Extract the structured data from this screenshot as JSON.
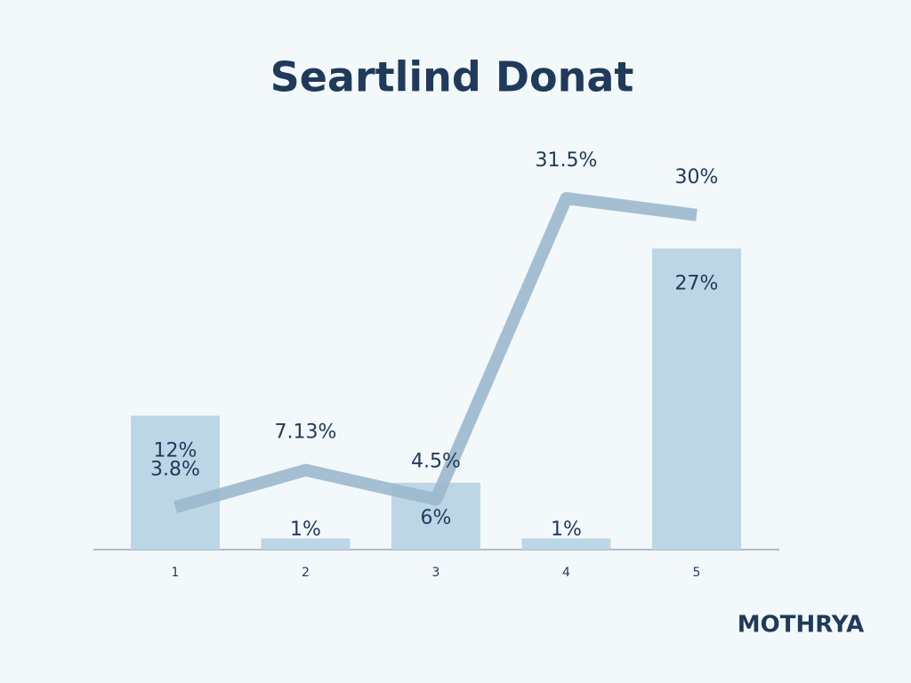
{
  "chart_data": {
    "type": "combo",
    "title": "Seartlind Donat",
    "categories": [
      "1",
      "2",
      "3",
      "4",
      "5"
    ],
    "series": [
      {
        "type": "bar",
        "color": "#bcd6e6",
        "values": [
          12,
          1,
          6,
          1,
          27
        ],
        "value_labels": [
          "12%",
          "1%",
          "6%",
          "1%",
          "27%"
        ]
      },
      {
        "type": "line",
        "color": "#9bb8cc",
        "values": [
          3.8,
          7.13,
          4.5,
          31.5,
          30
        ],
        "value_labels": [
          "3.8%",
          "7.13%",
          "4.5%",
          "31.5%",
          "30%"
        ]
      }
    ]
  },
  "brand": "MOTHRYA"
}
